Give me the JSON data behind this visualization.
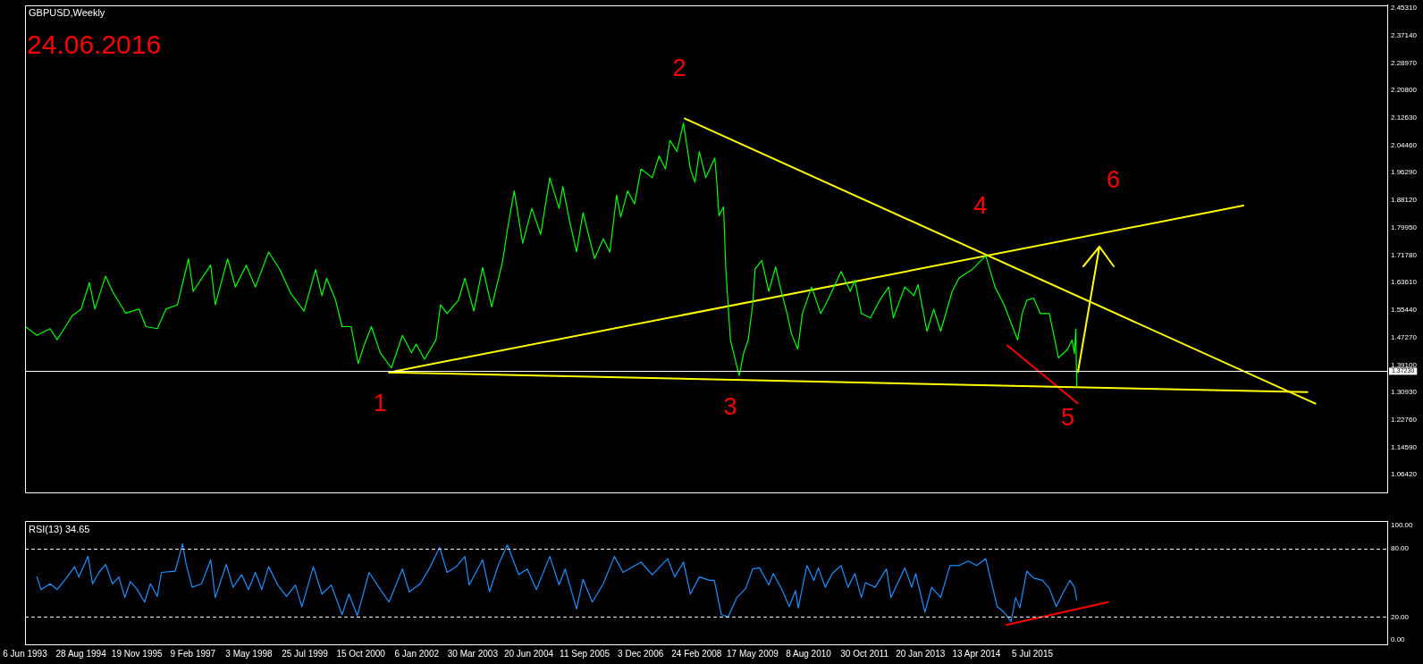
{
  "chart_data": [
    {
      "type": "line",
      "title": "GBPUSD,Weekly",
      "legend": false,
      "grid": false,
      "marker": "none",
      "tick_labels": "y",
      "annotations": [
        "24.06.2016",
        {
          "text": "1",
          "x": "2001-05-29",
          "y": 1.369
        },
        {
          "text": "2",
          "x": "2007-11-21",
          "y": 2.124
        },
        {
          "text": "3",
          "x": "2009-01-30",
          "y": 1.359
        },
        {
          "text": "4",
          "x": "2014-06-27",
          "y": 1.716
        },
        {
          "text": "5",
          "x": "2016-06-24",
          "y": 1.326
        },
        {
          "text": "6",
          "x": "2017-05-26",
          "y": 1.793
        }
      ],
      "x": [
        "1993-06-09",
        "1993-09-09",
        "1993-12-24",
        "1994-02-18",
        "1994-04-26",
        "1994-06-20",
        "1994-08-29",
        "1994-11-03",
        "1994-12-17",
        "1995-03-13",
        "1995-05-07",
        "1995-08-21",
        "1995-12-06",
        "1996-01-30",
        "1996-04-30",
        "1996-07-08",
        "1996-10-08",
        "1997-01-05",
        "1997-02-11",
        "1997-07-01",
        "1997-08-07",
        "1997-11-14",
        "1998-01-15",
        "1998-04-12",
        "1998-06-24",
        "1998-10-08",
        "1999-01-05",
        "1999-04-05",
        "1999-07-19",
        "1999-10-19",
        "1999-12-09",
        "2000-01-15",
        "2000-03-27",
        "2000-05-18",
        "2000-07-30",
        "2000-09-24",
        "2000-11-14",
        "2001-01-08",
        "2001-03-20",
        "2001-06-17",
        "2001-09-13",
        "2001-11-25",
        "2002-01-01",
        "2002-03-09",
        "2002-06-09",
        "2002-07-15",
        "2002-09-06",
        "2002-12-06",
        "2003-01-26",
        "2003-04-08",
        "2003-06-17",
        "2003-08-29",
        "2003-11-25",
        "2004-01-01",
        "2004-02-25",
        "2004-05-03",
        "2004-07-15",
        "2004-09-24",
        "2004-12-06",
        "2005-02-18",
        "2005-03-20",
        "2005-05-14",
        "2005-07-08",
        "2005-08-29",
        "2005-11-29",
        "2006-02-07",
        "2006-04-01",
        "2006-05-25",
        "2006-06-27",
        "2006-08-21",
        "2006-10-15",
        "2006-12-06",
        "2007-03-06",
        "2007-04-30",
        "2007-06-20",
        "2007-07-26",
        "2007-09-20",
        "2007-11-11",
        "2008-01-05",
        "2008-02-11",
        "2008-03-17",
        "2008-05-07",
        "2008-07-19",
        "2008-08-03",
        "2008-08-21",
        "2008-09-27",
        "2008-10-15",
        "2008-11-21",
        "2009-01-30",
        "2009-03-06",
        "2009-04-12",
        "2009-05-18",
        "2009-06-06",
        "2009-07-30",
        "2009-09-24",
        "2009-11-18",
        "2009-12-24",
        "2010-02-18",
        "2010-03-24",
        "2010-05-14",
        "2010-06-20",
        "2010-09-02",
        "2010-11-14",
        "2011-01-08",
        "2011-04-26",
        "2011-07-08",
        "2011-08-14",
        "2011-10-05",
        "2011-12-17",
        "2012-02-28",
        "2012-05-11",
        "2012-06-17",
        "2012-09-17",
        "2012-11-29",
        "2013-01-01",
        "2013-03-13",
        "2013-05-07",
        "2013-07-01",
        "2013-10-01",
        "2013-11-25",
        "2014-03-13",
        "2014-06-27",
        "2014-09-09",
        "2014-11-21",
        "2015-03-09",
        "2015-04-15",
        "2015-05-21",
        "2015-07-15",
        "2015-09-06",
        "2015-11-18",
        "2016-01-30",
        "2016-04-12",
        "2016-05-18",
        "2016-06-06",
        "2016-06-17",
        "2016-06-24",
        "2016-06-24"
      ],
      "series": [
        {
          "color": "#00ff00",
          "values": [
            1.505,
            1.479,
            1.499,
            1.466,
            1.505,
            1.538,
            1.557,
            1.636,
            1.557,
            1.655,
            1.61,
            1.545,
            1.557,
            1.505,
            1.499,
            1.557,
            1.57,
            1.707,
            1.61,
            1.688,
            1.57,
            1.707,
            1.623,
            1.688,
            1.623,
            1.727,
            1.675,
            1.603,
            1.551,
            1.675,
            1.597,
            1.649,
            1.584,
            1.505,
            1.505,
            1.395,
            1.453,
            1.505,
            1.427,
            1.382,
            1.479,
            1.427,
            1.453,
            1.408,
            1.466,
            1.57,
            1.544,
            1.584,
            1.649,
            1.551,
            1.681,
            1.564,
            1.701,
            1.792,
            1.909,
            1.753,
            1.857,
            1.779,
            1.948,
            1.857,
            1.922,
            1.818,
            1.727,
            1.844,
            1.707,
            1.766,
            1.727,
            1.896,
            1.831,
            1.909,
            1.87,
            1.974,
            1.948,
            2.013,
            1.974,
            2.059,
            2.026,
            2.111,
            1.974,
            1.935,
            2.026,
            1.948,
            2.007,
            1.94,
            1.835,
            1.861,
            1.676,
            1.465,
            1.359,
            1.425,
            1.465,
            1.57,
            1.676,
            1.702,
            1.61,
            1.683,
            1.623,
            1.544,
            1.484,
            1.438,
            1.544,
            1.623,
            1.544,
            1.583,
            1.669,
            1.61,
            1.643,
            1.544,
            1.531,
            1.583,
            1.623,
            1.531,
            1.623,
            1.597,
            1.63,
            1.491,
            1.557,
            1.491,
            1.61,
            1.65,
            1.676,
            1.716,
            1.623,
            1.57,
            1.465,
            1.544,
            1.583,
            1.59,
            1.544,
            1.544,
            1.412,
            1.438,
            1.465,
            1.425,
            1.498,
            1.326,
            1.372
          ]
        },
        {
          "type": "line",
          "x": [
            "2001-05-29",
            "2021-07-15"
          ],
          "color": "#ffff00",
          "values": [
            1.369,
            1.31
          ]
        },
        {
          "type": "line",
          "x": [
            "2001-05-29",
            "2020-02-18"
          ],
          "color": "#ffff00",
          "values": [
            1.369,
            1.865
          ]
        },
        {
          "type": "line",
          "x": [
            "2007-11-21",
            "2021-09-17"
          ],
          "color": "#ffff00",
          "values": [
            2.124,
            1.276
          ]
        },
        {
          "type": "line",
          "x": [
            "2014-12-17",
            "2016-07-01"
          ],
          "color": "#ff0000",
          "values": [
            1.449,
            1.277
          ]
        }
      ],
      "xlim": [
        "1993-06-06",
        "2023-04-15"
      ],
      "ylim": [
        1.0118,
        2.4613
      ],
      "yticks": [
        {
          "value": 2.4531,
          "label": "2.45310"
        },
        {
          "value": 2.3714,
          "label": "2.37140"
        },
        {
          "value": 2.2897,
          "label": "2.28970"
        },
        {
          "value": 2.208,
          "label": "2.20800"
        },
        {
          "value": 2.1263,
          "label": "2.12630"
        },
        {
          "value": 2.0446,
          "label": "2.04460"
        },
        {
          "value": 1.9629,
          "label": "1.96290"
        },
        {
          "value": 1.8812,
          "label": "1.88120"
        },
        {
          "value": 1.7995,
          "label": "1.79950"
        },
        {
          "value": 1.7178,
          "label": "1.71780"
        },
        {
          "value": 1.6361,
          "label": "1.63610"
        },
        {
          "value": 1.5544,
          "label": "1.55440"
        },
        {
          "value": 1.4727,
          "label": "1.47270"
        },
        {
          "value": 1.391,
          "label": "1.39100"
        },
        {
          "value": 1.3093,
          "label": "1.30930"
        },
        {
          "value": 1.2276,
          "label": "1.22760"
        },
        {
          "value": 1.1459,
          "label": "1.14590"
        },
        {
          "value": 1.0642,
          "label": "1.06420"
        }
      ],
      "ref_lines": [
        {
          "axis": "y",
          "value": 1.3723,
          "label": "1.37230",
          "color": "#ffffff"
        }
      ]
    },
    {
      "type": "line",
      "title": "RSI(13) 34.65",
      "legend": false,
      "grid": false,
      "marker": "none",
      "x": [
        "1993-09-09",
        "1993-10-12",
        "1993-12-24",
        "1994-02-18",
        "1994-04-26",
        "1994-07-08",
        "1994-08-11",
        "1994-10-23",
        "1994-11-29",
        "1995-01-19",
        "1995-03-13",
        "1995-05-07",
        "1995-06-27",
        "1995-08-14",
        "1995-09-27",
        "1995-11-21",
        "1996-01-19",
        "1996-03-06",
        "1996-04-30",
        "1996-06-02",
        "1996-09-20",
        "1996-11-18",
        "1996-12-17",
        "1997-02-03",
        "1997-04-19",
        "1997-07-01",
        "1997-08-07",
        "1997-11-03",
        "1997-12-27",
        "1998-03-06",
        "1998-04-30",
        "1998-06-24",
        "1998-08-14",
        "1998-10-08",
        "1998-12-20",
        "1999-02-28",
        "1999-05-11",
        "1999-07-01",
        "1999-10-01",
        "1999-12-09",
        "2000-02-21",
        "2000-05-18",
        "2000-07-12",
        "2000-09-17",
        "2000-12-20",
        "2001-03-20",
        "2001-05-29",
        "2001-09-13",
        "2001-11-07",
        "2002-02-03",
        "2002-04-15",
        "2002-07-08",
        "2002-09-06",
        "2002-11-18",
        "2003-01-26",
        "2003-03-02",
        "2003-06-17",
        "2003-08-11",
        "2003-10-23",
        "2004-01-01",
        "2004-04-01",
        "2004-06-09",
        "2004-08-21",
        "2004-12-06",
        "2005-02-18",
        "2005-04-08",
        "2005-07-08",
        "2005-08-29",
        "2005-11-11",
        "2006-02-07",
        "2006-05-07",
        "2006-07-15",
        "2006-12-06",
        "2007-03-06",
        "2007-07-08",
        "2007-09-02",
        "2007-11-11",
        "2008-01-05",
        "2008-03-17",
        "2008-06-09",
        "2008-07-15",
        "2008-09-09",
        "2008-11-03",
        "2009-01-12",
        "2009-03-24",
        "2009-05-18",
        "2009-07-12",
        "2009-09-24",
        "2009-10-30",
        "2010-01-12",
        "2010-03-06",
        "2010-04-26",
        "2010-05-18",
        "2010-07-26",
        "2010-09-20",
        "2010-10-26",
        "2010-12-20",
        "2011-02-14",
        "2011-04-26",
        "2011-06-20",
        "2011-08-14",
        "2011-10-05",
        "2011-11-07",
        "2012-01-23",
        "2012-04-23",
        "2012-05-29",
        "2012-09-17",
        "2012-11-11",
        "2012-12-13",
        "2013-02-25",
        "2013-04-19",
        "2013-07-01",
        "2013-09-13",
        "2013-11-25",
        "2014-02-07",
        "2014-04-15",
        "2014-06-27",
        "2014-08-03",
        "2014-09-27",
        "2014-11-21",
        "2015-01-15",
        "2015-02-21",
        "2015-03-27",
        "2015-05-21",
        "2015-07-15",
        "2015-09-24",
        "2015-11-18",
        "2016-01-12",
        "2016-03-06",
        "2016-04-30",
        "2016-06-06",
        "2016-06-24"
      ],
      "series": [
        {
          "color": "#1e90ff",
          "values": [
            55,
            44,
            49,
            44,
            53,
            64,
            55,
            73,
            49,
            59,
            66,
            49,
            55,
            37,
            51,
            44,
            33,
            49,
            38,
            59,
            60,
            84,
            66,
            46,
            49,
            70,
            37,
            66,
            46,
            57,
            44,
            59,
            44,
            64,
            48,
            38,
            48,
            29,
            64,
            40,
            48,
            22,
            40,
            21,
            59,
            44,
            33,
            62,
            42,
            49,
            62,
            81,
            59,
            64,
            73,
            48,
            70,
            42,
            66,
            83,
            57,
            62,
            44,
            73,
            48,
            62,
            27,
            53,
            33,
            49,
            73,
            59,
            68,
            57,
            71,
            55,
            68,
            40,
            55,
            52,
            52,
            22,
            20,
            37,
            45,
            62,
            63,
            48,
            58,
            43,
            29,
            43,
            28,
            65,
            52,
            63,
            46,
            58,
            65,
            46,
            58,
            37,
            50,
            46,
            62,
            37,
            63,
            46,
            58,
            24,
            46,
            37,
            65,
            65,
            69,
            65,
            71,
            54,
            29,
            24,
            16,
            37,
            28,
            60,
            54,
            52,
            45,
            29,
            41,
            52,
            46,
            35
          ]
        },
        {
          "type": "line",
          "x": [
            "2014-12-09",
            "2017-03-02"
          ],
          "color": "#ff0000",
          "values": [
            13,
            33
          ]
        }
      ],
      "xlim": [
        "1993-06-06",
        "2023-04-15"
      ],
      "ylim": [
        -4,
        104
      ],
      "xticks": [
        {
          "value": "1993-06-06",
          "label": "6 Jun 1993"
        },
        {
          "value": "1994-08-28",
          "label": "28 Aug 1994"
        },
        {
          "value": "1995-11-19",
          "label": "19 Nov 1995"
        },
        {
          "value": "1997-02-09",
          "label": "9 Feb 1997"
        },
        {
          "value": "1998-05-03",
          "label": "3 May 1998"
        },
        {
          "value": "1999-07-25",
          "label": "25 Jul 1999"
        },
        {
          "value": "2000-10-15",
          "label": "15 Oct 2000"
        },
        {
          "value": "2002-01-06",
          "label": "6 Jan 2002"
        },
        {
          "value": "2003-03-30",
          "label": "30 Mar 2003"
        },
        {
          "value": "2004-06-20",
          "label": "20 Jun 2004"
        },
        {
          "value": "2005-09-11",
          "label": "11 Sep 2005"
        },
        {
          "value": "2006-12-03",
          "label": "3 Dec 2006"
        },
        {
          "value": "2008-02-24",
          "label": "24 Feb 2008"
        },
        {
          "value": "2009-05-17",
          "label": "17 May 2009"
        },
        {
          "value": "2010-08-08",
          "label": "8 Aug 2010"
        },
        {
          "value": "2011-10-30",
          "label": "30 Oct 2011"
        },
        {
          "value": "2013-01-20",
          "label": "20 Jan 2013"
        },
        {
          "value": "2014-04-13",
          "label": "13 Apr 2014"
        },
        {
          "value": "2015-07-05",
          "label": "5 Jul 2015"
        }
      ],
      "yticks": [
        {
          "value": 100,
          "label": "100.00"
        },
        {
          "value": 80,
          "label": "80.00"
        },
        {
          "value": 20,
          "label": "20.00"
        },
        {
          "value": 0,
          "label": "0.00"
        }
      ],
      "ref_lines": [
        {
          "axis": "y",
          "value": 80,
          "color": "#ffffff",
          "line_style": "dashed"
        },
        {
          "axis": "y",
          "value": 20,
          "color": "#ffffff",
          "line_style": "dashed"
        }
      ]
    }
  ]
}
